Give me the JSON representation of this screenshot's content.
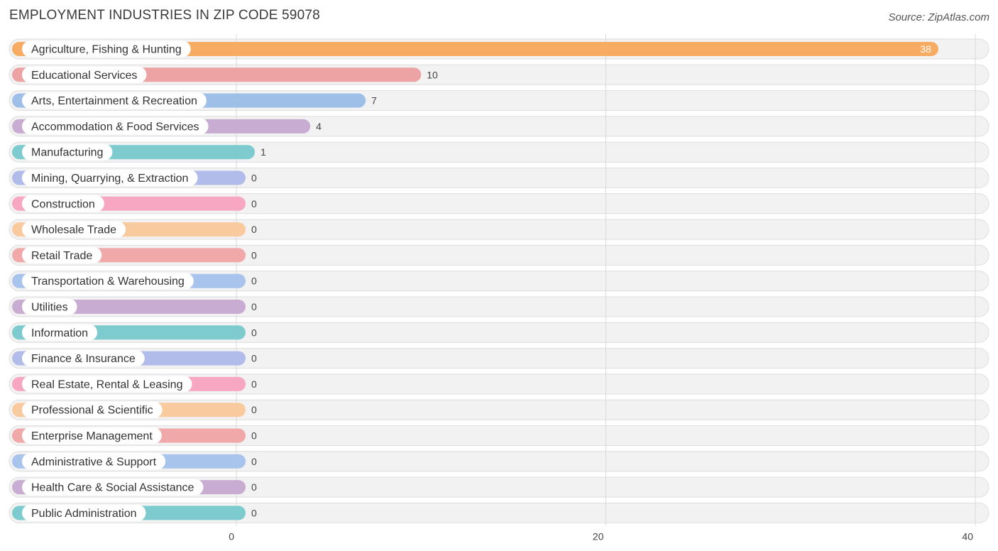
{
  "header": {
    "title": "EMPLOYMENT INDUSTRIES IN ZIP CODE 59078",
    "source": "Source: ZipAtlas.com"
  },
  "chart_data": {
    "type": "bar",
    "orientation": "horizontal",
    "title": "EMPLOYMENT INDUSTRIES IN ZIP CODE 59078",
    "xlabel": "",
    "ylabel": "",
    "xlim": [
      0,
      40
    ],
    "ticks": [
      0,
      20,
      40
    ],
    "grid": true,
    "categories": [
      "Agriculture, Fishing & Hunting",
      "Educational Services",
      "Arts, Entertainment & Recreation",
      "Accommodation & Food Services",
      "Manufacturing",
      "Mining, Quarrying, & Extraction",
      "Construction",
      "Wholesale Trade",
      "Retail Trade",
      "Transportation & Warehousing",
      "Utilities",
      "Information",
      "Finance & Insurance",
      "Real Estate, Rental & Leasing",
      "Professional & Scientific",
      "Enterprise Management",
      "Administrative & Support",
      "Health Care & Social Assistance",
      "Public Administration"
    ],
    "values": [
      38,
      10,
      7,
      4,
      1,
      0,
      0,
      0,
      0,
      0,
      0,
      0,
      0,
      0,
      0,
      0,
      0,
      0,
      0
    ],
    "colors": [
      "#f8ab62",
      "#eda3a3",
      "#9ec0e8",
      "#c9acd2",
      "#7ecbcf",
      "#b2bcea",
      "#f7a7c1",
      "#f9ca9e",
      "#f0a9a8",
      "#a8c4ec",
      "#c9acd2",
      "#7ecbcf",
      "#b2bcea",
      "#f7a7c1",
      "#f9ca9e",
      "#f0a9a8",
      "#a8c4ec",
      "#c9acd2",
      "#7ecbcf"
    ]
  }
}
